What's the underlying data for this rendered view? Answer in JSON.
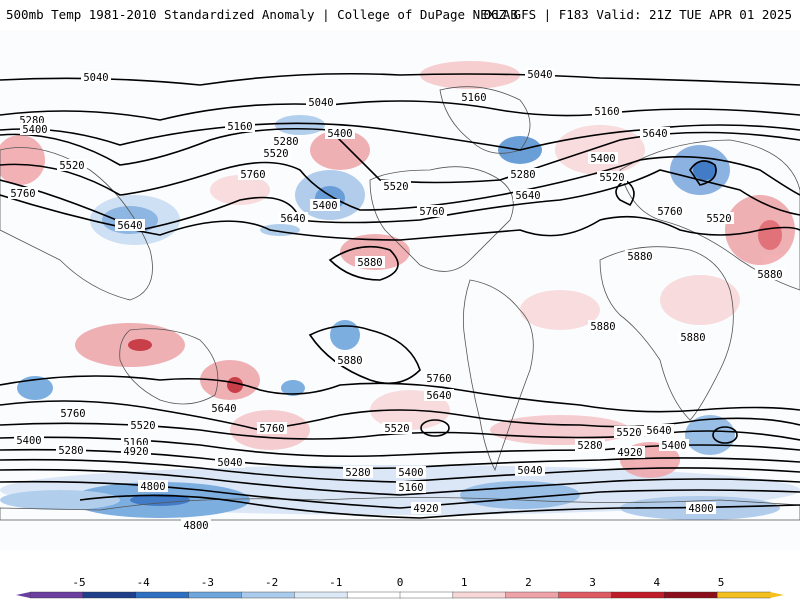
{
  "header": {
    "left": "500mb Temp 1981-2010 Standardized Anomaly | College of DuPage NEXLAB",
    "right": "06Z GFS | F183 Valid: 21Z TUE APR 01 2025"
  },
  "colorbar": {
    "labels": [
      "-5",
      "-4",
      "-3",
      "-2",
      "-1",
      "0",
      "1",
      "2",
      "3",
      "4",
      "5"
    ],
    "colors": [
      "#6a3fa0",
      "#1f3f8a",
      "#2e6fc0",
      "#6fa6dd",
      "#aacbec",
      "#dbe8f6",
      "#ffffff",
      "#ffffff",
      "#f7d6d8",
      "#eea3a8",
      "#de5a63",
      "#c01d2a",
      "#8a0f1a",
      "#f4c020"
    ]
  },
  "contour_labels": [
    "5040",
    "5040",
    "5160",
    "5280",
    "5400",
    "5520",
    "5640",
    "5760",
    "5880",
    "4920",
    "4800"
  ],
  "map_labels": {
    "l5040a": "5040",
    "l5040b": "5040",
    "l5040c": "5040",
    "l5040d": "5040",
    "l5040e": "5040",
    "l5160a": "5160",
    "l5160b": "5160",
    "l5160c": "5160",
    "l5160d": "5160",
    "l5160e": "5160",
    "l5280a": "5280",
    "l5280b": "5280",
    "l5280c": "5280",
    "l5280d": "5280",
    "l5280e": "5280",
    "l5280f": "5280",
    "l5400a": "5400",
    "l5400b": "5400",
    "l5400c": "5400",
    "l5400d": "5400",
    "l5400e": "5400",
    "l5400f": "5400",
    "l5400g": "5400",
    "l5520a": "5520",
    "l5520b": "5520",
    "l5520c": "5520",
    "l5520d": "5520",
    "l5520e": "5520",
    "l5520f": "5520",
    "l5520g": "5520",
    "l5520h": "5520",
    "l5640a": "5640",
    "l5640b": "5640",
    "l5640c": "5640",
    "l5640d": "5640",
    "l5640e": "5640",
    "l5640f": "5640",
    "l5640g": "5640",
    "l5760a": "5760",
    "l5760b": "5760",
    "l5760c": "5760",
    "l5760d": "5760",
    "l5760e": "5760",
    "l5760f": "5760",
    "l5760g": "5760",
    "l5880a": "5880",
    "l5880b": "5880",
    "l5880c": "5880",
    "l5880d": "5880",
    "l5880e": "5880",
    "l5880f": "5880",
    "l4920a": "4920",
    "l4920b": "4920",
    "l4920c": "4920",
    "l4800a": "4800",
    "l4800b": "4800",
    "l4800c": "4800"
  }
}
